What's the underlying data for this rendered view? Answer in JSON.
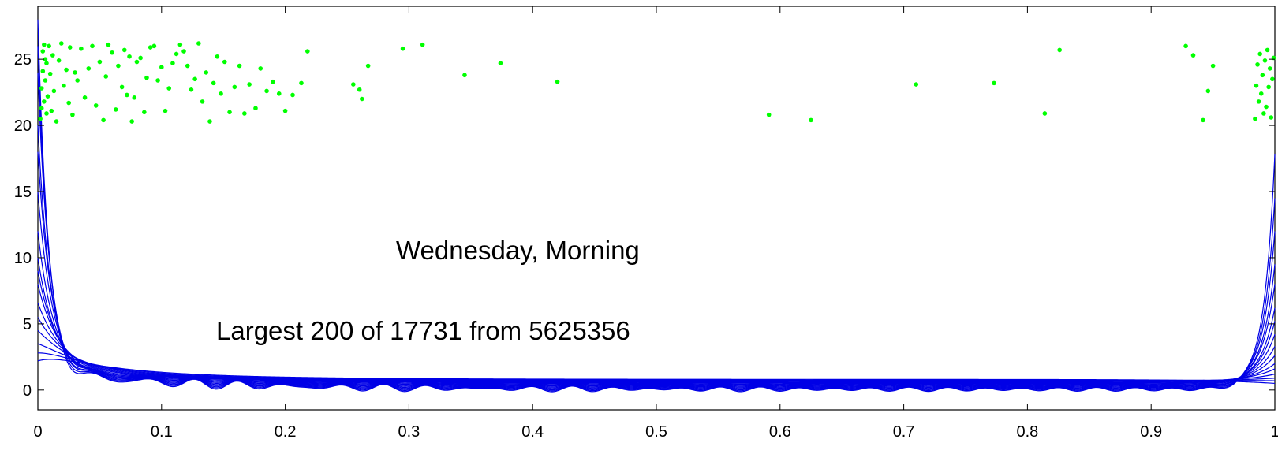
{
  "chart_data": {
    "type": "line",
    "title": "",
    "xlabel": "",
    "ylabel": "",
    "xlim": [
      0,
      1
    ],
    "ylim": [
      -1.5,
      29
    ],
    "xticks": [
      0,
      0.1,
      0.2,
      0.3,
      0.4,
      0.5,
      0.6,
      0.7,
      0.8,
      0.9,
      1
    ],
    "xtick_labels": [
      "0",
      "0.1",
      "0.2",
      "0.3",
      "0.4",
      "0.5",
      "0.6",
      "0.7",
      "0.8",
      "0.9",
      "1"
    ],
    "yticks": [
      0,
      5,
      10,
      15,
      20,
      25
    ],
    "ytick_labels": [
      "0",
      "5",
      "10",
      "15",
      "20",
      "25"
    ],
    "grid": false,
    "annotations": [
      {
        "text": "Wednesday, Morning",
        "x": 0.42,
        "y": 10.6
      },
      {
        "text": "Largest 200 of 17731  from 5625356",
        "x": 0.34,
        "y": 4.5
      }
    ],
    "colors": {
      "curves": "#0000e6",
      "points": "#00ff00",
      "axes": "#000000"
    },
    "curve_family": {
      "count": 16,
      "description_values": {
        "left_peak": [
          28,
          26,
          24,
          20,
          18,
          15,
          12,
          10,
          9,
          8,
          6.6,
          5.5,
          4.5,
          3.5,
          2.8,
          2.2
        ],
        "right_peak": [
          17.8,
          14.5,
          12,
          9.5,
          8,
          6.2,
          5.2,
          4.2,
          3.3,
          2.6,
          2,
          1.6,
          1.2,
          0.9,
          0.7,
          0.5
        ],
        "baseline": [
          0.05,
          0.1,
          0.15,
          0.2,
          0.25,
          0.3,
          0.35,
          0.4,
          0.45,
          0.5,
          0.55,
          0.6,
          0.65,
          0.7,
          0.75,
          0.8
        ]
      }
    },
    "scatter_points": [
      {
        "x": 0.002,
        "y": 20.5
      },
      {
        "x": 0.003,
        "y": 21.3
      },
      {
        "x": 0.003,
        "y": 22.8
      },
      {
        "x": 0.004,
        "y": 24.1
      },
      {
        "x": 0.004,
        "y": 25.6
      },
      {
        "x": 0.005,
        "y": 26.1
      },
      {
        "x": 0.005,
        "y": 21.8
      },
      {
        "x": 0.006,
        "y": 23.4
      },
      {
        "x": 0.006,
        "y": 25.0
      },
      {
        "x": 0.007,
        "y": 20.9
      },
      {
        "x": 0.007,
        "y": 24.7
      },
      {
        "x": 0.008,
        "y": 22.2
      },
      {
        "x": 0.009,
        "y": 26.0
      },
      {
        "x": 0.01,
        "y": 23.9
      },
      {
        "x": 0.011,
        "y": 21.1
      },
      {
        "x": 0.012,
        "y": 25.3
      },
      {
        "x": 0.013,
        "y": 22.6
      },
      {
        "x": 0.015,
        "y": 20.3
      },
      {
        "x": 0.017,
        "y": 24.9
      },
      {
        "x": 0.019,
        "y": 26.2
      },
      {
        "x": 0.021,
        "y": 23.0
      },
      {
        "x": 0.023,
        "y": 24.2
      },
      {
        "x": 0.025,
        "y": 21.7
      },
      {
        "x": 0.026,
        "y": 25.9
      },
      {
        "x": 0.028,
        "y": 20.8
      },
      {
        "x": 0.03,
        "y": 24.0
      },
      {
        "x": 0.032,
        "y": 23.4
      },
      {
        "x": 0.035,
        "y": 25.8
      },
      {
        "x": 0.038,
        "y": 22.1
      },
      {
        "x": 0.041,
        "y": 24.3
      },
      {
        "x": 0.044,
        "y": 26.0
      },
      {
        "x": 0.047,
        "y": 21.5
      },
      {
        "x": 0.05,
        "y": 24.8
      },
      {
        "x": 0.053,
        "y": 20.4
      },
      {
        "x": 0.055,
        "y": 23.7
      },
      {
        "x": 0.057,
        "y": 26.1
      },
      {
        "x": 0.06,
        "y": 25.5
      },
      {
        "x": 0.063,
        "y": 21.2
      },
      {
        "x": 0.065,
        "y": 24.5
      },
      {
        "x": 0.068,
        "y": 22.9
      },
      {
        "x": 0.07,
        "y": 25.7
      },
      {
        "x": 0.072,
        "y": 22.3
      },
      {
        "x": 0.074,
        "y": 25.2
      },
      {
        "x": 0.076,
        "y": 20.3
      },
      {
        "x": 0.078,
        "y": 22.1
      },
      {
        "x": 0.08,
        "y": 24.8
      },
      {
        "x": 0.083,
        "y": 25.1
      },
      {
        "x": 0.086,
        "y": 21.0
      },
      {
        "x": 0.088,
        "y": 23.6
      },
      {
        "x": 0.091,
        "y": 25.9
      },
      {
        "x": 0.094,
        "y": 26.0
      },
      {
        "x": 0.097,
        "y": 23.4
      },
      {
        "x": 0.1,
        "y": 24.4
      },
      {
        "x": 0.103,
        "y": 21.1
      },
      {
        "x": 0.106,
        "y": 22.8
      },
      {
        "x": 0.109,
        "y": 24.7
      },
      {
        "x": 0.112,
        "y": 25.4
      },
      {
        "x": 0.115,
        "y": 26.1
      },
      {
        "x": 0.118,
        "y": 25.6
      },
      {
        "x": 0.121,
        "y": 24.5
      },
      {
        "x": 0.124,
        "y": 22.7
      },
      {
        "x": 0.127,
        "y": 23.5
      },
      {
        "x": 0.13,
        "y": 26.2
      },
      {
        "x": 0.133,
        "y": 21.8
      },
      {
        "x": 0.136,
        "y": 24.0
      },
      {
        "x": 0.139,
        "y": 20.3
      },
      {
        "x": 0.142,
        "y": 23.2
      },
      {
        "x": 0.145,
        "y": 25.2
      },
      {
        "x": 0.148,
        "y": 22.4
      },
      {
        "x": 0.151,
        "y": 24.8
      },
      {
        "x": 0.155,
        "y": 21.0
      },
      {
        "x": 0.159,
        "y": 22.9
      },
      {
        "x": 0.163,
        "y": 24.5
      },
      {
        "x": 0.167,
        "y": 20.9
      },
      {
        "x": 0.171,
        "y": 23.1
      },
      {
        "x": 0.176,
        "y": 21.3
      },
      {
        "x": 0.18,
        "y": 24.3
      },
      {
        "x": 0.185,
        "y": 22.6
      },
      {
        "x": 0.19,
        "y": 23.3
      },
      {
        "x": 0.195,
        "y": 22.4
      },
      {
        "x": 0.2,
        "y": 21.1
      },
      {
        "x": 0.206,
        "y": 22.3
      },
      {
        "x": 0.213,
        "y": 23.2
      },
      {
        "x": 0.218,
        "y": 25.6
      },
      {
        "x": 0.255,
        "y": 23.1
      },
      {
        "x": 0.26,
        "y": 22.7
      },
      {
        "x": 0.262,
        "y": 22.0
      },
      {
        "x": 0.267,
        "y": 24.5
      },
      {
        "x": 0.295,
        "y": 25.8
      },
      {
        "x": 0.311,
        "y": 26.1
      },
      {
        "x": 0.345,
        "y": 23.8
      },
      {
        "x": 0.374,
        "y": 24.7
      },
      {
        "x": 0.42,
        "y": 23.3
      },
      {
        "x": 0.591,
        "y": 20.8
      },
      {
        "x": 0.625,
        "y": 20.4
      },
      {
        "x": 0.71,
        "y": 23.1
      },
      {
        "x": 0.773,
        "y": 23.2
      },
      {
        "x": 0.814,
        "y": 20.9
      },
      {
        "x": 0.826,
        "y": 25.7
      },
      {
        "x": 0.928,
        "y": 26.0
      },
      {
        "x": 0.934,
        "y": 25.3
      },
      {
        "x": 0.942,
        "y": 20.4
      },
      {
        "x": 0.946,
        "y": 22.6
      },
      {
        "x": 0.95,
        "y": 24.5
      },
      {
        "x": 0.984,
        "y": 20.5
      },
      {
        "x": 0.985,
        "y": 23.0
      },
      {
        "x": 0.986,
        "y": 24.6
      },
      {
        "x": 0.987,
        "y": 21.8
      },
      {
        "x": 0.988,
        "y": 25.4
      },
      {
        "x": 0.989,
        "y": 22.4
      },
      {
        "x": 0.99,
        "y": 23.8
      },
      {
        "x": 0.991,
        "y": 20.9
      },
      {
        "x": 0.992,
        "y": 24.9
      },
      {
        "x": 0.993,
        "y": 21.4
      },
      {
        "x": 0.994,
        "y": 25.7
      },
      {
        "x": 0.995,
        "y": 22.9
      },
      {
        "x": 0.996,
        "y": 24.3
      },
      {
        "x": 0.997,
        "y": 20.6
      },
      {
        "x": 0.998,
        "y": 23.5
      },
      {
        "x": 0.999,
        "y": 25.1
      }
    ]
  }
}
